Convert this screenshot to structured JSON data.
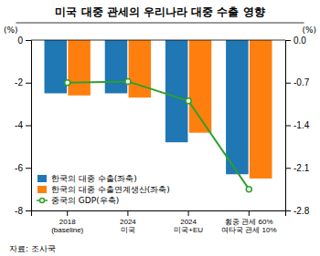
{
  "chart_data": {
    "type": "bar",
    "title": "미국 대중 관세의 우리나라 대중 수출 영향",
    "source": "자료: 조사국",
    "categories": [
      "2018\n(baseline)",
      "2024\n미국",
      "2024\n미국+EU",
      "횡중 관세 60%\n여타국 관세 10%"
    ],
    "series": [
      {
        "name": "한국의 대중 수출(좌축)",
        "values": [
          -2.5,
          -2.5,
          -4.8,
          -6.3
        ]
      },
      {
        "name": "한국의 대중 수출연계생산(좌축)",
        "values": [
          -2.6,
          -2.7,
          -4.35,
          -6.5
        ]
      },
      {
        "name": "중국의 GDP(우축)",
        "type": "line",
        "axis": "y2",
        "marker": "circle",
        "values": [
          -0.7,
          -0.68,
          -1.0,
          -2.45
        ]
      }
    ],
    "ylabel": "(%)",
    "y2label": "(%)",
    "ylim": [
      -8,
      0
    ],
    "yticks": [
      0,
      -2,
      -4,
      -6,
      -8
    ],
    "y2lim": [
      -2.8,
      0
    ],
    "y2ticks": [
      {
        "value": 0.0,
        "label": "0.0"
      },
      -0.7,
      -1.4,
      -2.1,
      -2.8
    ],
    "grid": false,
    "legend": "lower left"
  }
}
